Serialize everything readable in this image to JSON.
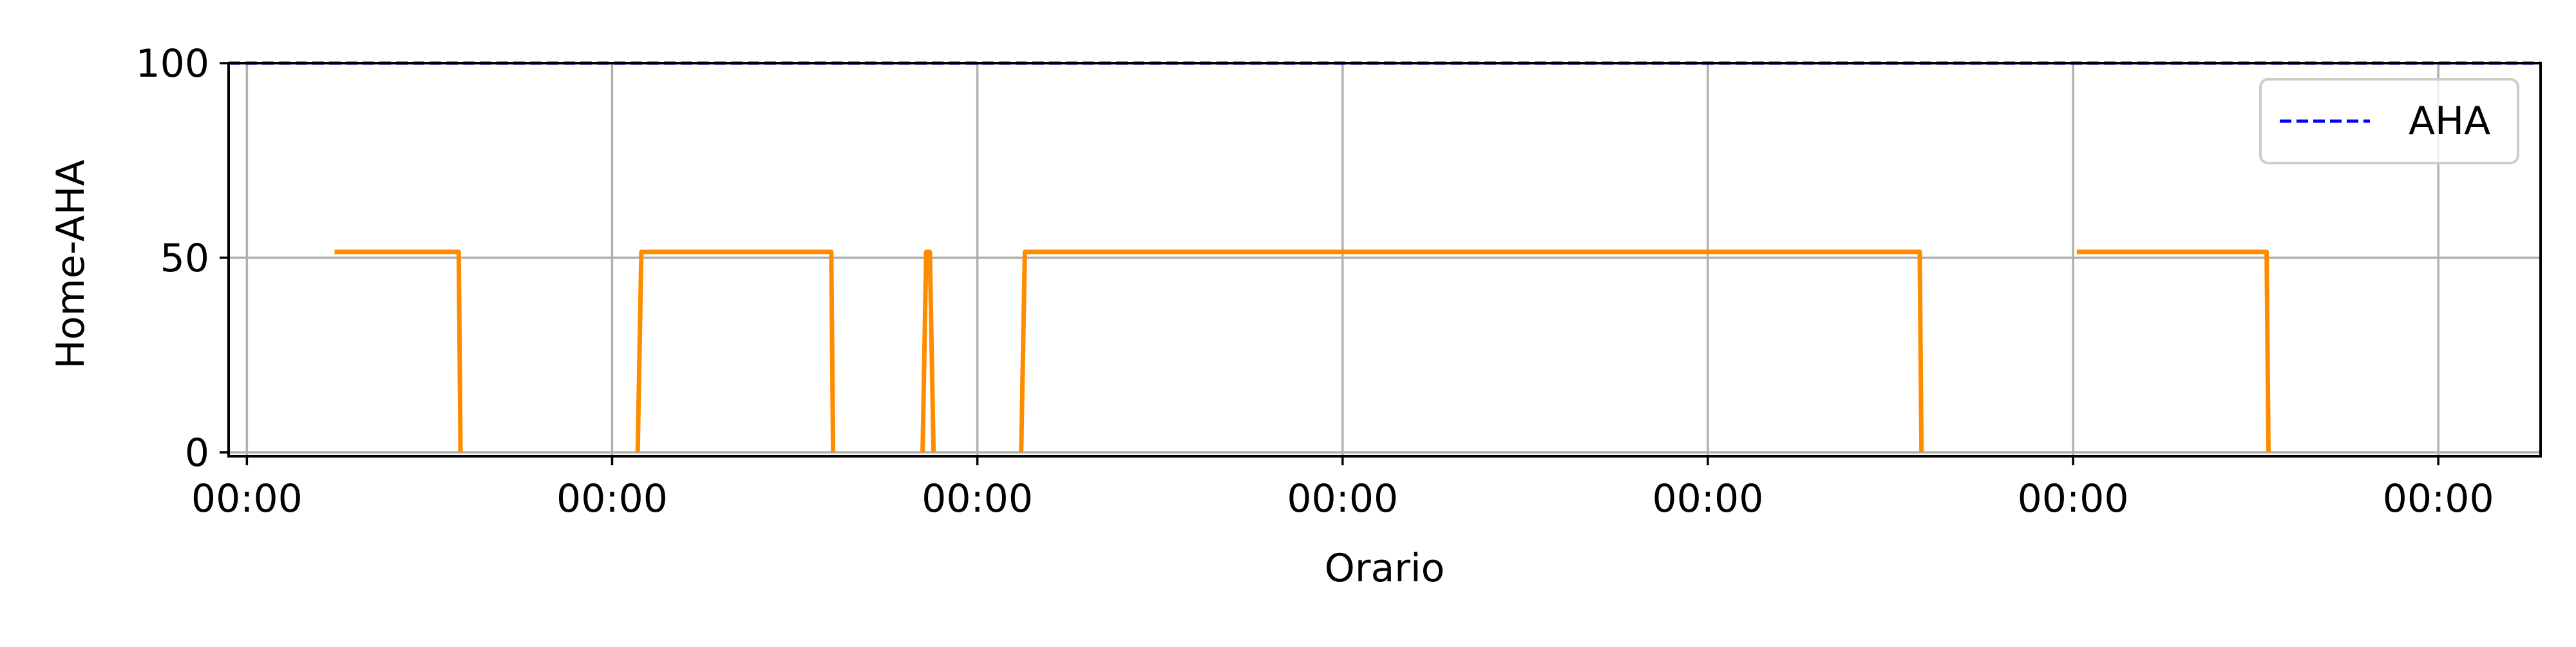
{
  "chart_data": {
    "type": "line",
    "xlabel": "Orario",
    "ylabel": "Home-AHA",
    "x_ticks": [
      "00:00",
      "00:00",
      "00:00",
      "00:00",
      "00:00",
      "00:00",
      "00:00"
    ],
    "x_tick_values": [
      0,
      1,
      2,
      3,
      4,
      5,
      6
    ],
    "xlim": [
      -0.05,
      6.28
    ],
    "y_ticks": [
      0,
      50,
      100
    ],
    "ylim": [
      -1,
      100
    ],
    "grid": true,
    "legend": {
      "position": "top-right",
      "entries": [
        "AHA"
      ]
    },
    "series": [
      {
        "name": "AHA",
        "style": "dashed",
        "color": "#0000ff",
        "x": [
          -0.05,
          6.28
        ],
        "y": [
          100,
          100
        ]
      },
      {
        "style": "solid",
        "color": "#ff8c00",
        "segments": [
          {
            "x": [
              0.24,
              0.58,
              0.585
            ],
            "y": [
              51.5,
              51.5,
              0
            ]
          },
          {
            "x": [
              1.07,
              1.08,
              1.6,
              1.605
            ],
            "y": [
              0,
              51.5,
              51.5,
              0
            ]
          },
          {
            "x": [
              1.85,
              1.86,
              1.87,
              1.88
            ],
            "y": [
              0,
              51.5,
              51.5,
              0
            ]
          },
          {
            "x": [
              2.12,
              2.13,
              4.58,
              4.585
            ],
            "y": [
              0,
              51.5,
              51.5,
              0
            ]
          },
          {
            "x": [
              5.01,
              5.53,
              5.535
            ],
            "y": [
              51.5,
              51.5,
              0
            ]
          }
        ]
      }
    ]
  }
}
